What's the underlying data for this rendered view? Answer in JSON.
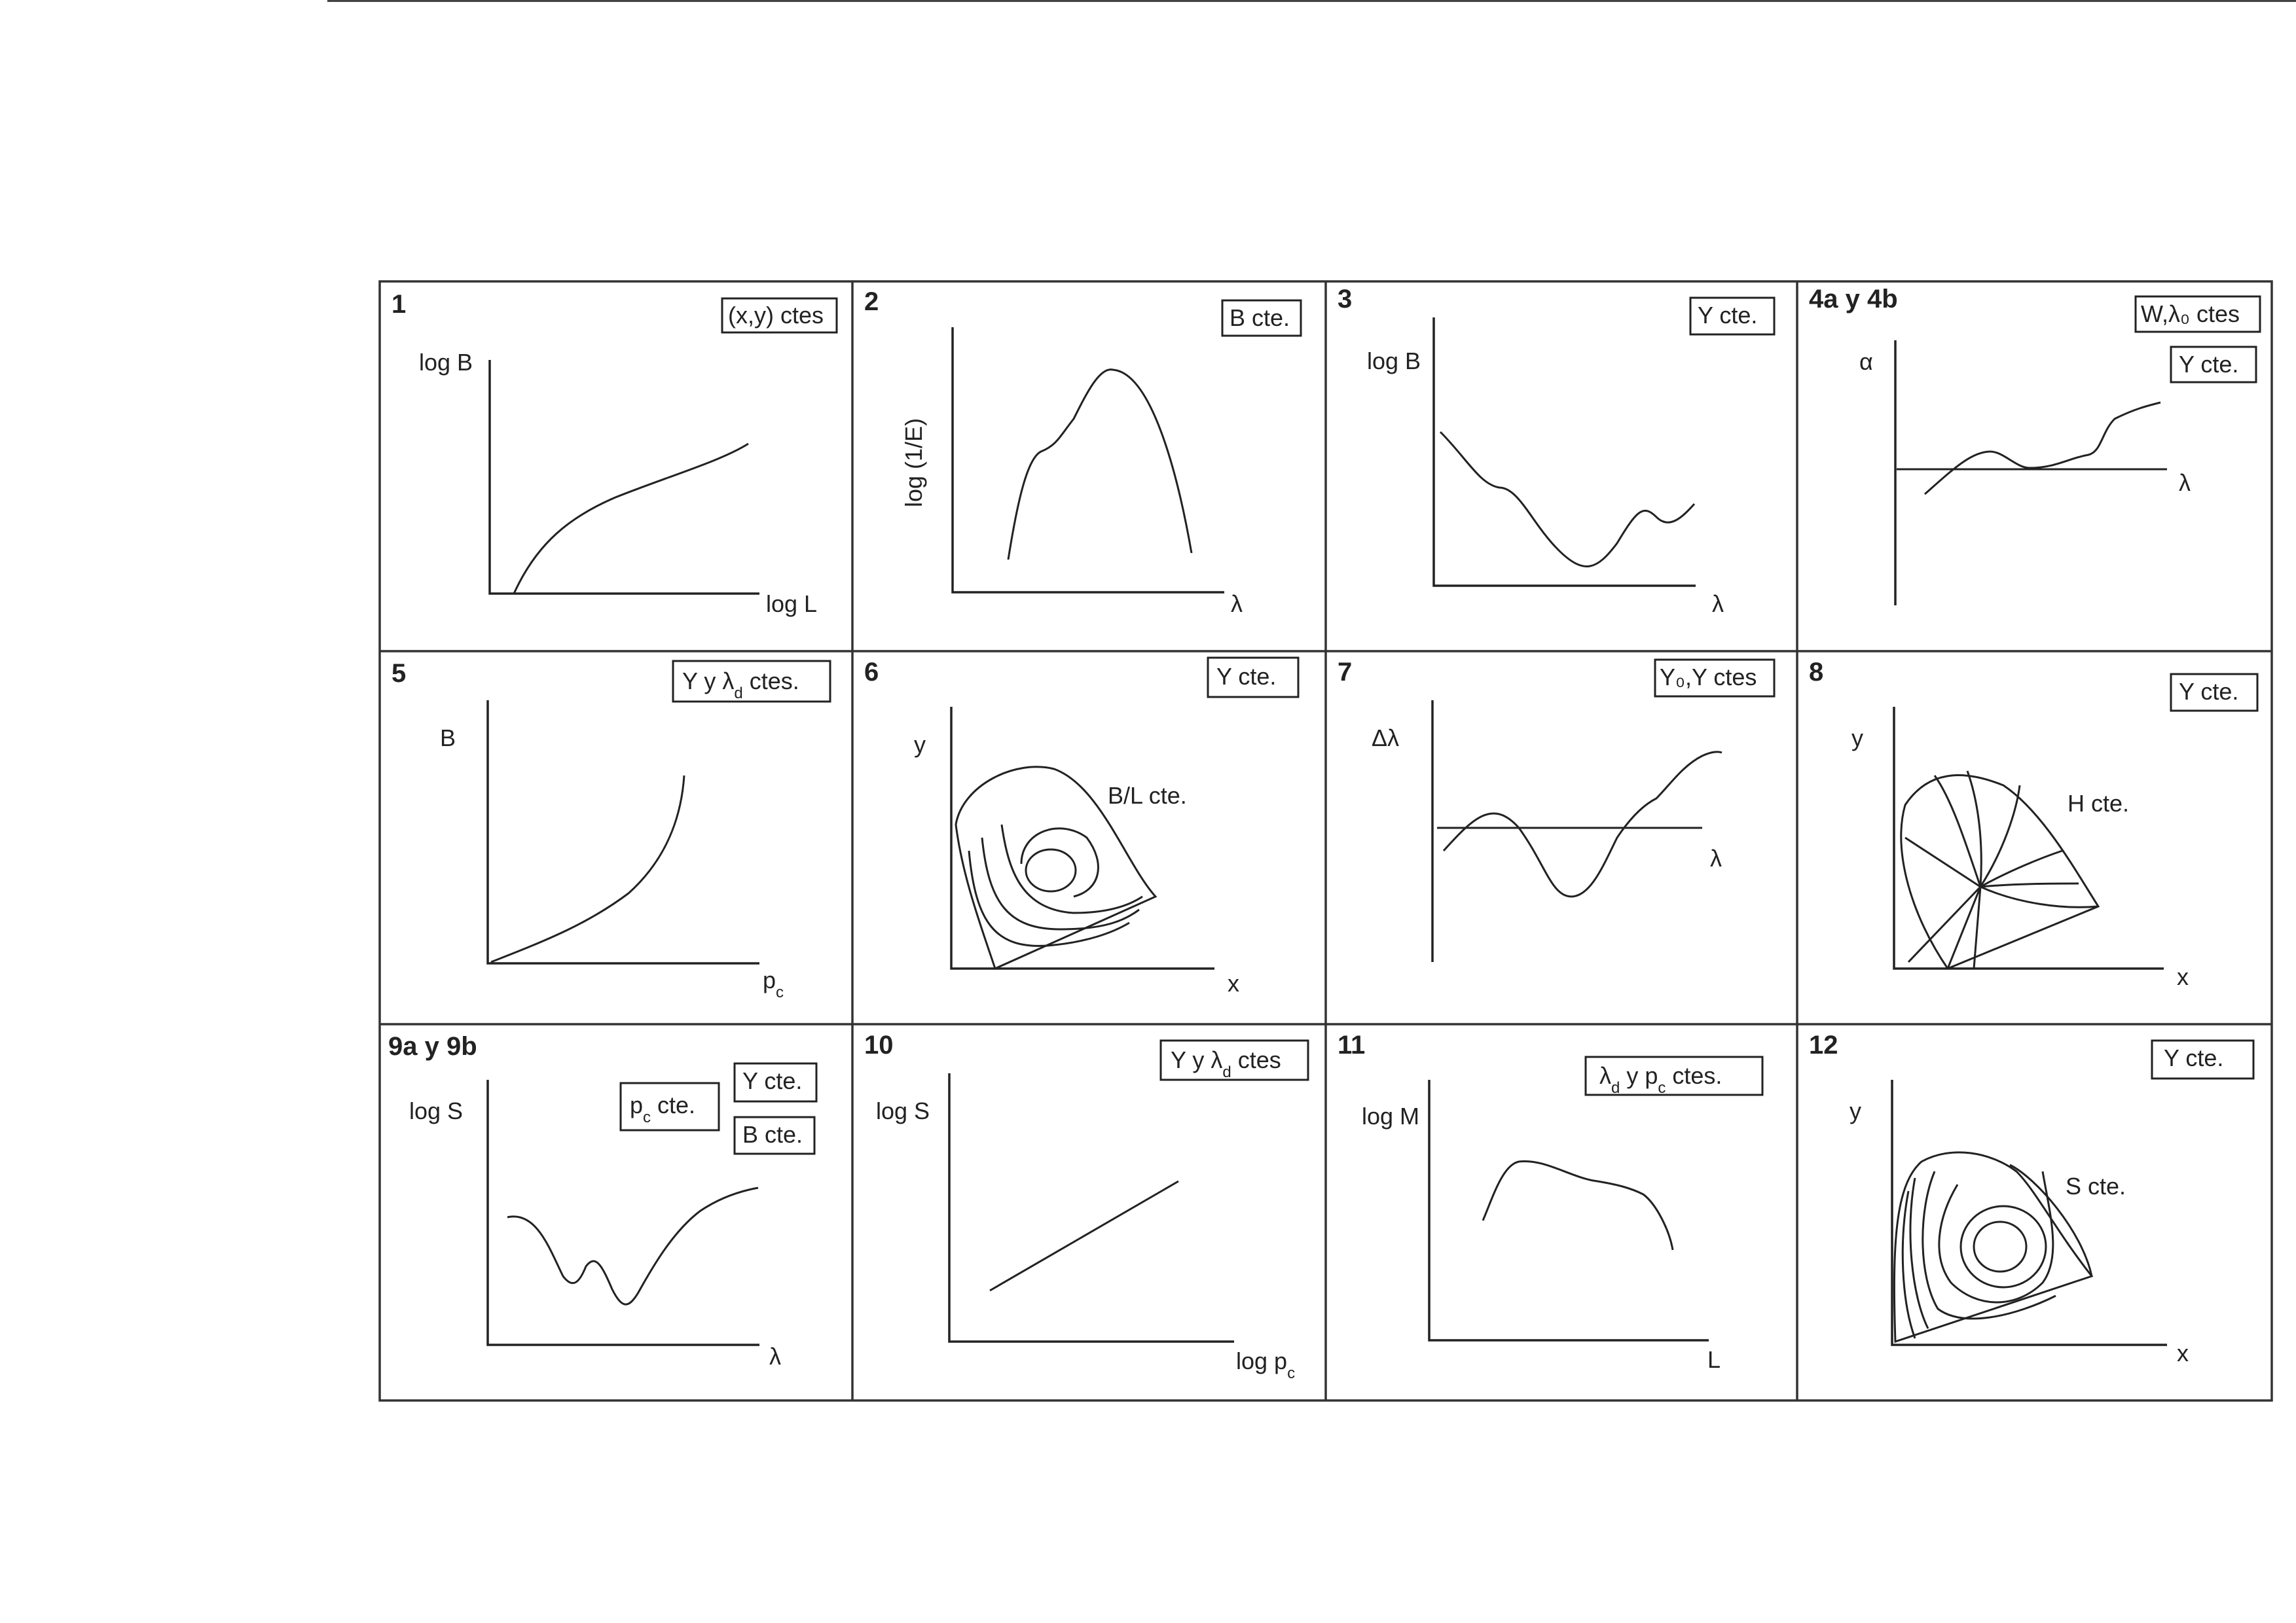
{
  "title": "",
  "colors": {
    "ink": "#222222",
    "paper": "#ffffff"
  },
  "panels": [
    {
      "id": "p1",
      "number": "1",
      "boxes": [
        "(x,y) ctes"
      ],
      "ylabel": "log B",
      "xlabel": "log L",
      "annotation": ""
    },
    {
      "id": "p2",
      "number": "2",
      "boxes": [
        "B cte."
      ],
      "ylabel": "log (1/E)",
      "xlabel": "λ",
      "annotation": ""
    },
    {
      "id": "p3",
      "number": "3",
      "boxes": [
        "Y cte."
      ],
      "ylabel": "log B",
      "xlabel": "λ",
      "annotation": ""
    },
    {
      "id": "p4",
      "number": "4a y 4b",
      "boxes": [
        "W,λ₀ ctes",
        "Y cte."
      ],
      "ylabel": "α",
      "xlabel": "λ",
      "annotation": ""
    },
    {
      "id": "p5",
      "number": "5",
      "boxes": [
        "Y y λ_d ctes."
      ],
      "ylabel": "B",
      "xlabel": "p_c",
      "annotation": ""
    },
    {
      "id": "p6",
      "number": "6",
      "boxes": [
        "Y cte."
      ],
      "ylabel": "y",
      "xlabel": "x",
      "annotation": "B/L cte."
    },
    {
      "id": "p7",
      "number": "7",
      "boxes": [
        "Y₀,Y ctes"
      ],
      "ylabel": "Δλ",
      "xlabel": "λ",
      "annotation": ""
    },
    {
      "id": "p8",
      "number": "8",
      "boxes": [
        "Y cte."
      ],
      "ylabel": "y",
      "xlabel": "x",
      "annotation": "H cte."
    },
    {
      "id": "p9",
      "number": "9a y 9b",
      "boxes": [
        "p_c cte.",
        "Y cte.",
        "B cte."
      ],
      "ylabel": "log S",
      "xlabel": "λ",
      "annotation": ""
    },
    {
      "id": "p10",
      "number": "10",
      "boxes": [
        "Y y λ_d ctes"
      ],
      "ylabel": "log S",
      "xlabel": "log p_c",
      "annotation": ""
    },
    {
      "id": "p11",
      "number": "11",
      "boxes": [
        "λ_d y p_c ctes."
      ],
      "ylabel": "log M",
      "xlabel": "L",
      "annotation": ""
    },
    {
      "id": "p12",
      "number": "12",
      "boxes": [
        "Y cte."
      ],
      "ylabel": "y",
      "xlabel": "x",
      "annotation": "S cte."
    }
  ]
}
